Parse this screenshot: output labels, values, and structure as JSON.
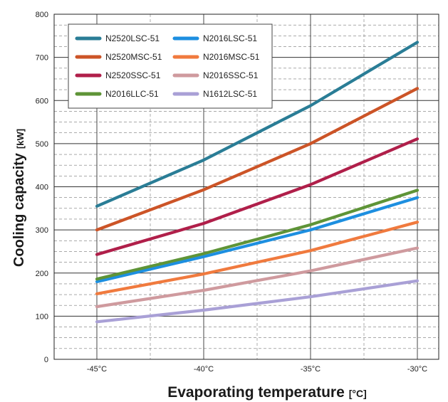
{
  "chart_data": {
    "type": "line",
    "xlabel": "Evaporating temperature",
    "xunit": "[°C]",
    "ylabel": "Cooling capacity",
    "yunit": "[kW]",
    "x": [
      -45,
      -40,
      -35,
      -30
    ],
    "xtick_labels": [
      "-45°C",
      "-40°C",
      "-35°C",
      "-30°C"
    ],
    "xlim": [
      -47,
      -29
    ],
    "ylim": [
      0,
      800
    ],
    "yticks": [
      0,
      100,
      200,
      300,
      400,
      500,
      600,
      700,
      800
    ],
    "grid": true,
    "legend_position": "top-left",
    "series": [
      {
        "name": "N2520LSC-51",
        "color": "#2a7d96",
        "values": [
          355,
          462,
          588,
          735
        ]
      },
      {
        "name": "N2016LSC-51",
        "color": "#1d8fe0",
        "values": [
          180,
          238,
          300,
          375
        ]
      },
      {
        "name": "N2520MSC-51",
        "color": "#cc5427",
        "values": [
          300,
          393,
          500,
          628
        ]
      },
      {
        "name": "N2016MSC-51",
        "color": "#f07a3e",
        "values": [
          152,
          198,
          252,
          318
        ]
      },
      {
        "name": "N2520SSC-51",
        "color": "#b01f4a",
        "values": [
          243,
          315,
          405,
          511
        ]
      },
      {
        "name": "N2016SSC-51",
        "color": "#cf9a9e",
        "values": [
          122,
          160,
          205,
          258
        ]
      },
      {
        "name": "N2016LLC-51",
        "color": "#5e9437",
        "values": [
          186,
          245,
          312,
          392
        ]
      },
      {
        "name": "N1612LSC-51",
        "color": "#a9a0d6",
        "values": [
          87,
          114,
          145,
          182
        ]
      }
    ]
  }
}
